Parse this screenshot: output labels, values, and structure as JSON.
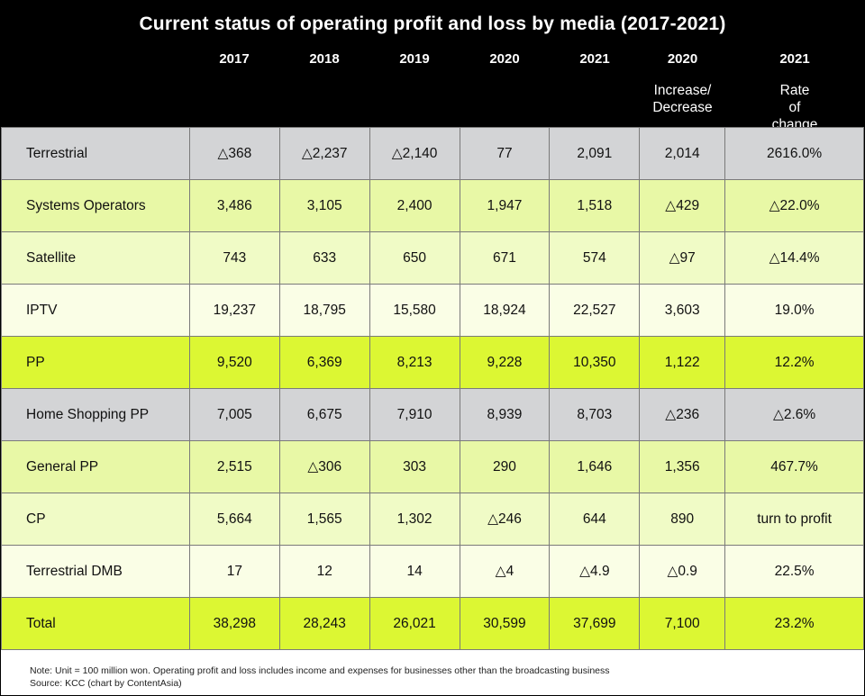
{
  "chart_data": {
    "type": "table",
    "title": "Current status of operating profit and loss by media (2017-2021)",
    "columns": [
      {
        "top": "2017",
        "sub": ""
      },
      {
        "top": "2018",
        "sub": ""
      },
      {
        "top": "2019",
        "sub": ""
      },
      {
        "top": "2020",
        "sub": ""
      },
      {
        "top": "2021",
        "sub": ""
      },
      {
        "top": "2020",
        "sub": "Increase/ Decrease"
      },
      {
        "top": "2021",
        "sub": "Rate of change"
      }
    ],
    "rows": [
      {
        "label": "Terrestrial",
        "style": "gray",
        "values": [
          "△368",
          "△2,237",
          "△2,140",
          "77",
          "2,091",
          "2,014",
          "2616.0%"
        ]
      },
      {
        "label": "Systems Operators",
        "style": "lime-mid",
        "values": [
          "3,486",
          "3,105",
          "2,400",
          "1,947",
          "1,518",
          "△429",
          "△22.0%"
        ]
      },
      {
        "label": "Satellite",
        "style": "lime-light",
        "values": [
          "743",
          "633",
          "650",
          "671",
          "574",
          "△97",
          "△14.4%"
        ]
      },
      {
        "label": "IPTV",
        "style": "lime-pale",
        "values": [
          "19,237",
          "18,795",
          "15,580",
          "18,924",
          "22,527",
          "3,603",
          "19.0%"
        ]
      },
      {
        "label": "PP",
        "style": "lime-bright",
        "values": [
          "9,520",
          "6,369",
          "8,213",
          "9,228",
          "10,350",
          "1,122",
          "12.2%"
        ]
      },
      {
        "label": "Home Shopping PP",
        "style": "gray",
        "values": [
          "7,005",
          "6,675",
          "7,910",
          "8,939",
          "8,703",
          "△236",
          "△2.6%"
        ]
      },
      {
        "label": "General PP",
        "style": "lime-mid",
        "values": [
          "2,515",
          "△306",
          "303",
          "290",
          "1,646",
          "1,356",
          "467.7%"
        ]
      },
      {
        "label": "CP",
        "style": "lime-light",
        "values": [
          "5,664",
          "1,565",
          "1,302",
          "△246",
          "644",
          "890",
          "turn to profit"
        ]
      },
      {
        "label": "Terrestrial DMB",
        "style": "lime-pale",
        "values": [
          "17",
          "12",
          "14",
          "△4",
          "△4.9",
          "△0.9",
          "22.5%"
        ]
      },
      {
        "label": "Total",
        "style": "lime-bright",
        "values": [
          "38,298",
          "28,243",
          "26,021",
          "30,599",
          "37,699",
          "7,100",
          "23.2%"
        ]
      }
    ]
  },
  "colors": {
    "header_bg": "#000000",
    "header_text": "#ffffff",
    "gray": "#d3d4d6",
    "lime-mid": "#e8f8a6",
    "lime-light": "#f0fbc6",
    "lime-pale": "#fafee6",
    "lime-bright": "#dcf733"
  },
  "footer": {
    "note": "Note: Unit = 100 million won. Operating profit and loss includes income and expenses for businesses other than the broadcasting business",
    "source": "Source: KCC (chart by ContentAsia)"
  }
}
